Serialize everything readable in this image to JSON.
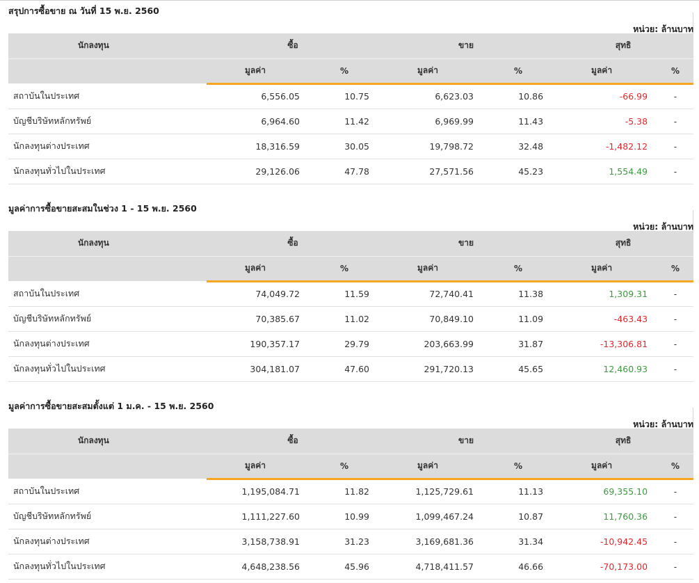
{
  "unit_label": "หน่วย: ล้านบาท",
  "headers": {
    "investor": "นักลงทุน",
    "buy": "ซื้อ",
    "sell": "ขาย",
    "net": "สุทธิ",
    "value": "มูลค่า",
    "percent": "%"
  },
  "colors": {
    "accent": "#f5a623",
    "negative": "#e0262b",
    "positive": "#3c9a3c",
    "header_bg": "#dcdcdc"
  },
  "sections": [
    {
      "title": "สรุปการซื้อขาย ณ วันที่ 15 พ.ย. 2560",
      "rows": [
        {
          "investor": "สถาบันในประเทศ",
          "buy_value": "6,556.05",
          "buy_pct": "10.75",
          "sell_value": "6,623.03",
          "sell_pct": "10.86",
          "net_value": "-66.99",
          "net_sign": "neg",
          "net_pct": "-"
        },
        {
          "investor": "บัญชีบริษัทหลักทรัพย์",
          "buy_value": "6,964.60",
          "buy_pct": "11.42",
          "sell_value": "6,969.99",
          "sell_pct": "11.43",
          "net_value": "-5.38",
          "net_sign": "neg",
          "net_pct": "-"
        },
        {
          "investor": "นักลงทุนต่างประเทศ",
          "buy_value": "18,316.59",
          "buy_pct": "30.05",
          "sell_value": "19,798.72",
          "sell_pct": "32.48",
          "net_value": "-1,482.12",
          "net_sign": "neg",
          "net_pct": "-"
        },
        {
          "investor": "นักลงทุนทั่วไปในประเทศ",
          "buy_value": "29,126.06",
          "buy_pct": "47.78",
          "sell_value": "27,571.56",
          "sell_pct": "45.23",
          "net_value": "1,554.49",
          "net_sign": "pos",
          "net_pct": "-"
        }
      ]
    },
    {
      "title": "มูลค่าการซื้อขายสะสมในช่วง 1 - 15 พ.ย. 2560",
      "rows": [
        {
          "investor": "สถาบันในประเทศ",
          "buy_value": "74,049.72",
          "buy_pct": "11.59",
          "sell_value": "72,740.41",
          "sell_pct": "11.38",
          "net_value": "1,309.31",
          "net_sign": "pos",
          "net_pct": "-"
        },
        {
          "investor": "บัญชีบริษัทหลักทรัพย์",
          "buy_value": "70,385.67",
          "buy_pct": "11.02",
          "sell_value": "70,849.10",
          "sell_pct": "11.09",
          "net_value": "-463.43",
          "net_sign": "neg",
          "net_pct": "-"
        },
        {
          "investor": "นักลงทุนต่างประเทศ",
          "buy_value": "190,357.17",
          "buy_pct": "29.79",
          "sell_value": "203,663.99",
          "sell_pct": "31.87",
          "net_value": "-13,306.81",
          "net_sign": "neg",
          "net_pct": "-"
        },
        {
          "investor": "นักลงทุนทั่วไปในประเทศ",
          "buy_value": "304,181.07",
          "buy_pct": "47.60",
          "sell_value": "291,720.13",
          "sell_pct": "45.65",
          "net_value": "12,460.93",
          "net_sign": "pos",
          "net_pct": "-"
        }
      ]
    },
    {
      "title": "มูลค่าการซื้อขายสะสมตั้งแต่ 1 ม.ค. - 15 พ.ย. 2560",
      "rows": [
        {
          "investor": "สถาบันในประเทศ",
          "buy_value": "1,195,084.71",
          "buy_pct": "11.82",
          "sell_value": "1,125,729.61",
          "sell_pct": "11.13",
          "net_value": "69,355.10",
          "net_sign": "pos",
          "net_pct": "-"
        },
        {
          "investor": "บัญชีบริษัทหลักทรัพย์",
          "buy_value": "1,111,227.60",
          "buy_pct": "10.99",
          "sell_value": "1,099,467.24",
          "sell_pct": "10.87",
          "net_value": "11,760.36",
          "net_sign": "pos",
          "net_pct": "-"
        },
        {
          "investor": "นักลงทุนต่างประเทศ",
          "buy_value": "3,158,738.91",
          "buy_pct": "31.23",
          "sell_value": "3,169,681.36",
          "sell_pct": "31.34",
          "net_value": "-10,942.45",
          "net_sign": "neg",
          "net_pct": "-"
        },
        {
          "investor": "นักลงทุนทั่วไปในประเทศ",
          "buy_value": "4,648,238.56",
          "buy_pct": "45.96",
          "sell_value": "4,718,411.57",
          "sell_pct": "46.66",
          "net_value": "-70,173.00",
          "net_sign": "neg",
          "net_pct": "-"
        }
      ]
    }
  ]
}
